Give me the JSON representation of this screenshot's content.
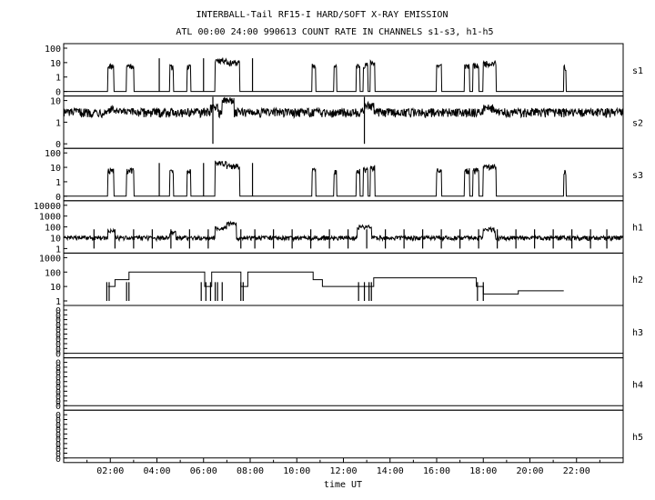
{
  "chart_data": {
    "type": "line",
    "title": "INTERBALL-Tail RF15-I HARD/SOFT X-RAY EMISSION",
    "subtitle": "ATL 00:00 24:00 990613  COUNT RATE IN CHANNELS s1-s3, h1-h5",
    "xlabel": "time UT",
    "xlim": [
      0,
      24
    ],
    "x_ticks": [
      "02:00",
      "04:00",
      "06:00",
      "08:00",
      "10:00",
      "12:00",
      "14:00",
      "16:00",
      "18:00",
      "20:00",
      "22:00"
    ],
    "y_scale": "log",
    "panels": [
      {
        "channel": "s1",
        "y_ticks": [
          "100",
          "10",
          "1",
          "0"
        ],
        "baseline": 0,
        "features": [
          {
            "start": 1.9,
            "end": 2.15,
            "level": 6
          },
          {
            "start": 2.7,
            "end": 3.0,
            "level": 6
          },
          {
            "start": 4.55,
            "end": 4.7,
            "level": 5
          },
          {
            "start": 5.3,
            "end": 5.45,
            "level": 5
          },
          {
            "start": 6.5,
            "end": 7.0,
            "level": 15
          },
          {
            "start": 7.0,
            "end": 7.55,
            "level": 10
          },
          {
            "start": 10.65,
            "end": 10.8,
            "level": 6
          },
          {
            "start": 11.6,
            "end": 11.7,
            "level": 5
          },
          {
            "start": 12.55,
            "end": 12.7,
            "level": 6
          },
          {
            "start": 12.85,
            "end": 13.05,
            "level": 7
          },
          {
            "start": 13.15,
            "end": 13.35,
            "level": 10
          },
          {
            "start": 16.0,
            "end": 16.2,
            "level": 6
          },
          {
            "start": 17.2,
            "end": 17.4,
            "level": 6
          },
          {
            "start": 17.55,
            "end": 17.8,
            "level": 6
          },
          {
            "start": 18.0,
            "end": 18.55,
            "level": 9
          },
          {
            "start": 21.45,
            "end": 21.55,
            "level": 5
          }
        ],
        "spikes": [
          4.1,
          6.0,
          8.1
        ]
      },
      {
        "channel": "s2",
        "y_ticks": [
          "10",
          "1",
          "0"
        ],
        "baseline": 3,
        "features": [
          {
            "start": 1.9,
            "end": 2.2,
            "level": 4
          },
          {
            "start": 6.3,
            "end": 6.6,
            "level": 5
          },
          {
            "start": 6.8,
            "end": 7.3,
            "level": 10
          },
          {
            "start": 12.9,
            "end": 13.3,
            "level": 6
          },
          {
            "start": 18.0,
            "end": 18.5,
            "level": 5
          }
        ],
        "spikes": [
          6.4,
          12.9
        ]
      },
      {
        "channel": "s3",
        "y_ticks": [
          "100",
          "10",
          "1",
          "0"
        ],
        "baseline": 0,
        "features": [
          {
            "start": 1.9,
            "end": 2.15,
            "level": 6
          },
          {
            "start": 2.7,
            "end": 3.0,
            "level": 6
          },
          {
            "start": 4.55,
            "end": 4.7,
            "level": 5
          },
          {
            "start": 5.3,
            "end": 5.45,
            "level": 5
          },
          {
            "start": 6.5,
            "end": 7.0,
            "level": 20
          },
          {
            "start": 7.0,
            "end": 7.55,
            "level": 12
          },
          {
            "start": 10.65,
            "end": 10.8,
            "level": 6
          },
          {
            "start": 11.6,
            "end": 11.7,
            "level": 5
          },
          {
            "start": 12.55,
            "end": 12.7,
            "level": 6
          },
          {
            "start": 12.85,
            "end": 13.05,
            "level": 7
          },
          {
            "start": 13.15,
            "end": 13.35,
            "level": 10
          },
          {
            "start": 16.0,
            "end": 16.2,
            "level": 6
          },
          {
            "start": 17.2,
            "end": 17.4,
            "level": 6
          },
          {
            "start": 17.55,
            "end": 17.8,
            "level": 6
          },
          {
            "start": 18.0,
            "end": 18.55,
            "level": 12
          },
          {
            "start": 21.45,
            "end": 21.55,
            "level": 5
          }
        ],
        "spikes": [
          4.1,
          6.0,
          8.1
        ]
      },
      {
        "channel": "h1",
        "y_ticks": [
          "10000",
          "1000",
          "100",
          "10",
          "1"
        ],
        "baseline": 10,
        "features": [
          {
            "start": 1.9,
            "end": 2.2,
            "level": 40
          },
          {
            "start": 4.55,
            "end": 4.8,
            "level": 30
          },
          {
            "start": 6.5,
            "end": 7.0,
            "level": 80
          },
          {
            "start": 7.0,
            "end": 7.4,
            "level": 200
          },
          {
            "start": 12.6,
            "end": 13.2,
            "level": 100
          },
          {
            "start": 18.0,
            "end": 18.5,
            "level": 60
          }
        ],
        "spikes": [
          1.3,
          2.2,
          3.0,
          3.8,
          4.6,
          5.4,
          6.2,
          7.6,
          8.2,
          9.0,
          9.8,
          10.6,
          11.4,
          12.2,
          13.0,
          13.8,
          14.6,
          15.4,
          16.2,
          17.0,
          17.8,
          18.6,
          19.4,
          20.2,
          21.0,
          21.8,
          22.6,
          23.3
        ]
      },
      {
        "channel": "h2",
        "y_ticks": [
          "1000",
          "100",
          "10",
          "1"
        ],
        "steps": [
          {
            "x": 1.9,
            "y": 10
          },
          {
            "x": 2.2,
            "y": 30
          },
          {
            "x": 2.8,
            "y": 100
          },
          {
            "x": 5.5,
            "y": 100
          },
          {
            "x": 6.05,
            "y": 10
          },
          {
            "x": 6.35,
            "y": 100
          },
          {
            "x": 7.6,
            "y": 10
          },
          {
            "x": 7.9,
            "y": 100
          },
          {
            "x": 10.7,
            "y": 30
          },
          {
            "x": 11.1,
            "y": 10
          },
          {
            "x": 12.65,
            "y": 10
          },
          {
            "x": 12.95,
            "y": 10
          },
          {
            "x": 13.3,
            "y": 40
          },
          {
            "x": 14.5,
            "y": 40
          },
          {
            "x": 16.0,
            "y": 40
          },
          {
            "x": 17.7,
            "y": 10
          },
          {
            "x": 18.0,
            "y": 3
          },
          {
            "x": 19.5,
            "y": 5
          },
          {
            "x": 19.9,
            "y": 5
          },
          {
            "x": 20.2,
            "y": 5
          },
          {
            "x": 21.45,
            "y": 5
          }
        ],
        "spikes": [
          1.85,
          1.95,
          2.7,
          2.8,
          5.9,
          6.1,
          6.3,
          6.5,
          6.6,
          6.8,
          7.6,
          7.7,
          12.65,
          12.9,
          13.1,
          13.2,
          17.75,
          18.0
        ]
      },
      {
        "channel": "h3",
        "y_ticks": [
          "0",
          "0",
          "0",
          "0",
          "0",
          "0",
          "0",
          "0",
          "0",
          "0"
        ],
        "baseline": 0
      },
      {
        "channel": "h4",
        "y_ticks": [
          "0",
          "0",
          "0",
          "0",
          "0",
          "0",
          "0",
          "0",
          "0",
          "0"
        ],
        "baseline": 0
      },
      {
        "channel": "h5",
        "y_ticks": [
          "0",
          "0",
          "0",
          "0",
          "0",
          "0",
          "0",
          "0",
          "0",
          "0"
        ],
        "baseline": 0
      }
    ]
  }
}
